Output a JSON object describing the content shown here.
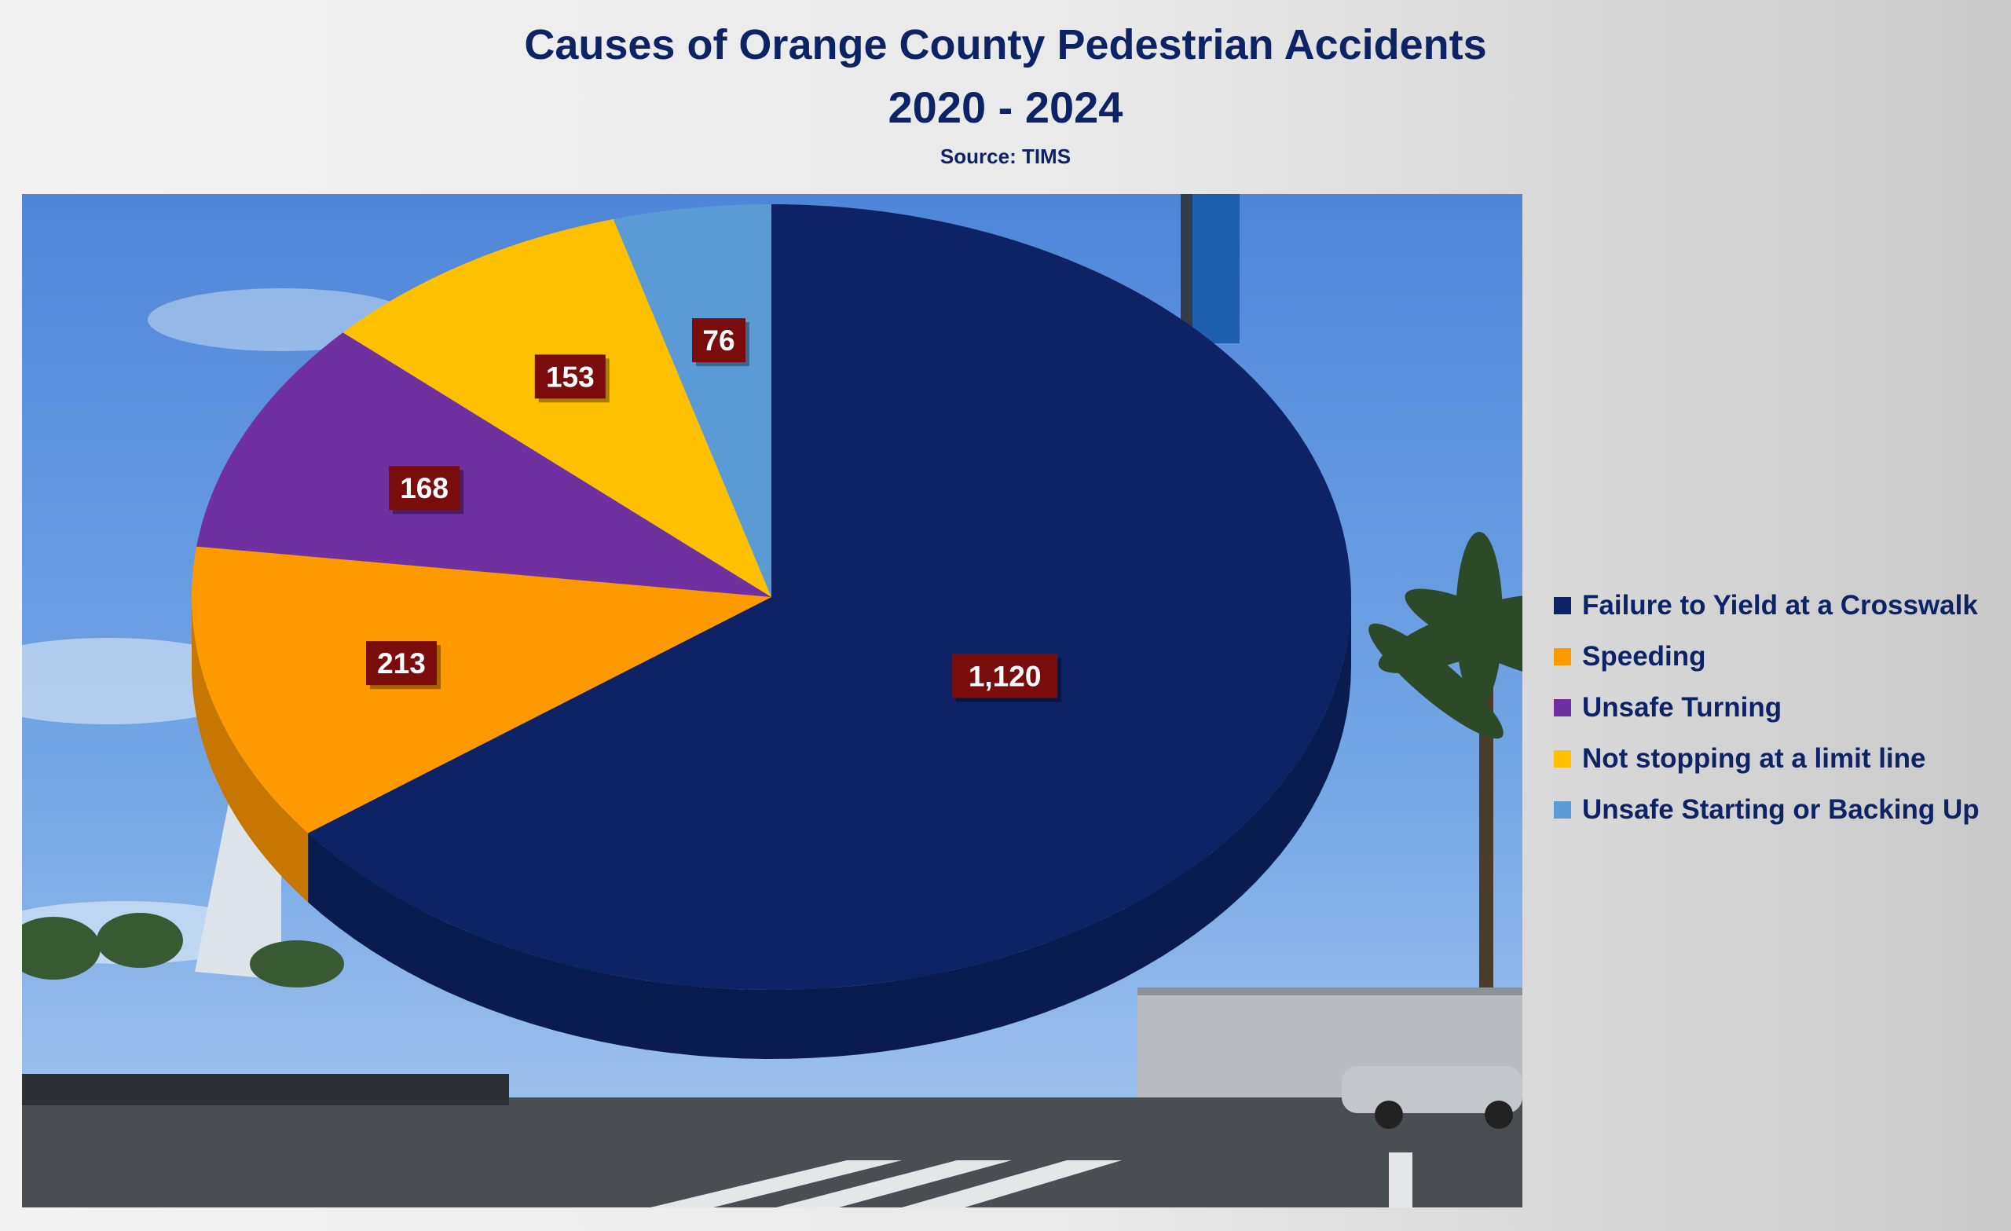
{
  "title_line1": "Causes of Orange County Pedestrian Accidents",
  "title_line2": "2020 - 2024",
  "source": "Source: TIMS",
  "chart_data": {
    "type": "pie",
    "title": "Causes of Orange County Pedestrian Accidents 2020 - 2024",
    "subtitle": "Source: TIMS",
    "legend_position": "right",
    "slices": [
      {
        "label": "Failure to Yield at a Crosswalk",
        "value": 1120,
        "display": "1,120",
        "color": "#0d2365"
      },
      {
        "label": "Speeding",
        "value": 213,
        "display": "213",
        "color": "#ff9900"
      },
      {
        "label": "Unsafe Turning",
        "value": 168,
        "display": "168",
        "color": "#7030a0"
      },
      {
        "label": "Not stopping at a limit line",
        "value": 153,
        "display": "153",
        "color": "#ffc000"
      },
      {
        "label": "Unsafe Starting or Backing Up",
        "value": 76,
        "display": "76",
        "color": "#5b9bd5"
      }
    ],
    "label_box_color": "#7b0c0c"
  }
}
